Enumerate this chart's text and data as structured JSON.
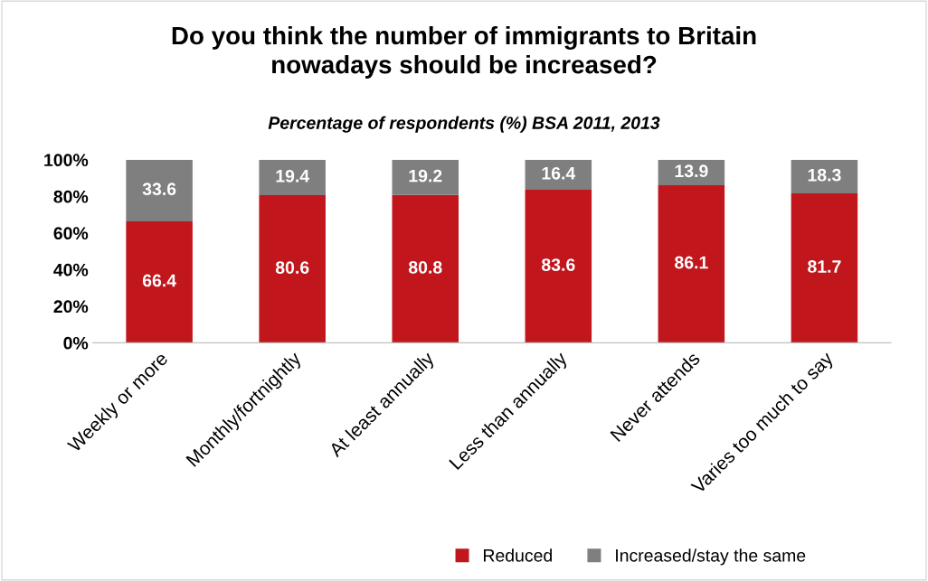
{
  "chart_data": {
    "type": "bar",
    "stacked": true,
    "title": "Do you think the number of immigrants to Britain\nnowadays should be increased?",
    "subtitle": "Percentage of respondents (%) BSA 2011, 2013",
    "categories": [
      "Weekly or more",
      "Monthly/fortnightly",
      "At least annually",
      "Less than annually",
      "Never attends",
      "Varies too much to say"
    ],
    "series": [
      {
        "name": "Reduced",
        "color": "#c0161c",
        "values": [
          66.4,
          80.6,
          80.8,
          83.6,
          86.1,
          81.7
        ]
      },
      {
        "name": "Increased/stay the same",
        "color": "#7f7f7f",
        "values": [
          33.6,
          19.4,
          19.2,
          16.4,
          13.9,
          18.3
        ]
      }
    ],
    "ylim": [
      0,
      100
    ],
    "yticks": [
      {
        "value": 0,
        "label": "0%"
      },
      {
        "value": 20,
        "label": "20%"
      },
      {
        "value": 40,
        "label": "40%"
      },
      {
        "value": 60,
        "label": "60%"
      },
      {
        "value": 80,
        "label": "80%"
      },
      {
        "value": 100,
        "label": "100%"
      }
    ],
    "data_labels": true,
    "grid": false,
    "legend": "bottom"
  }
}
